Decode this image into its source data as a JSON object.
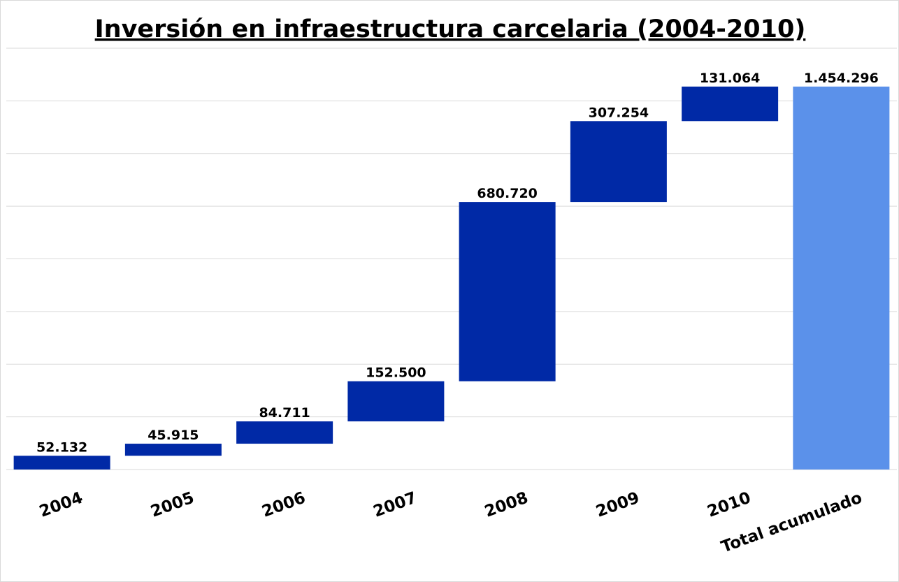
{
  "chart_data": {
    "type": "waterfall",
    "title": "Inversión en infraestructura carcelaria (2004-2010)",
    "categories": [
      "2004",
      "2005",
      "2006",
      "2007",
      "2008",
      "2009",
      "2010",
      "Total acumulado"
    ],
    "values": [
      52132,
      45915,
      84711,
      152500,
      680720,
      307254,
      131064,
      1454296
    ],
    "data_labels": [
      "52.132",
      "45.915",
      "84.711",
      "152.500",
      "680.720",
      "307.254",
      "131.064",
      "1.454.296"
    ],
    "total_index": 7,
    "ylim": [
      0,
      1600000
    ],
    "y_gridline_step": 200000,
    "y_tick_labels_shown": false,
    "grid": true,
    "legend": "none",
    "colors": {
      "increase": "#0029A6",
      "total": "#5B91EA",
      "grid": "#d9d9d9"
    }
  }
}
